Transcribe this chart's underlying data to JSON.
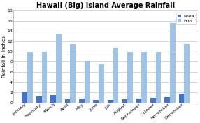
{
  "title": "Hawaii (Big) Island Average Rainfall",
  "ylabel": "Rainfall in Inches",
  "months": [
    "January",
    "February",
    "March",
    "April",
    "May",
    "June",
    "July",
    "August",
    "September",
    "October",
    "November",
    "December"
  ],
  "kona": [
    2.0,
    1.2,
    1.5,
    0.7,
    0.8,
    0.5,
    0.6,
    0.7,
    0.8,
    0.9,
    1.1,
    1.8
  ],
  "hilo": [
    10.0,
    10.0,
    13.5,
    11.5,
    8.2,
    7.5,
    10.8,
    10.0,
    10.0,
    9.8,
    15.5,
    11.5
  ],
  "kona_color": "#4472C4",
  "hilo_color": "#9DC3E6",
  "ylim": [
    0,
    18
  ],
  "yticks": [
    0,
    2,
    4,
    6,
    8,
    10,
    12,
    14,
    16,
    18
  ],
  "legend_labels": [
    "Kona",
    "Hilo"
  ],
  "background_color": "#ffffff",
  "grid_color": "#c8c8c8",
  "title_fontsize": 7,
  "axis_fontsize": 5,
  "tick_fontsize": 4.5
}
